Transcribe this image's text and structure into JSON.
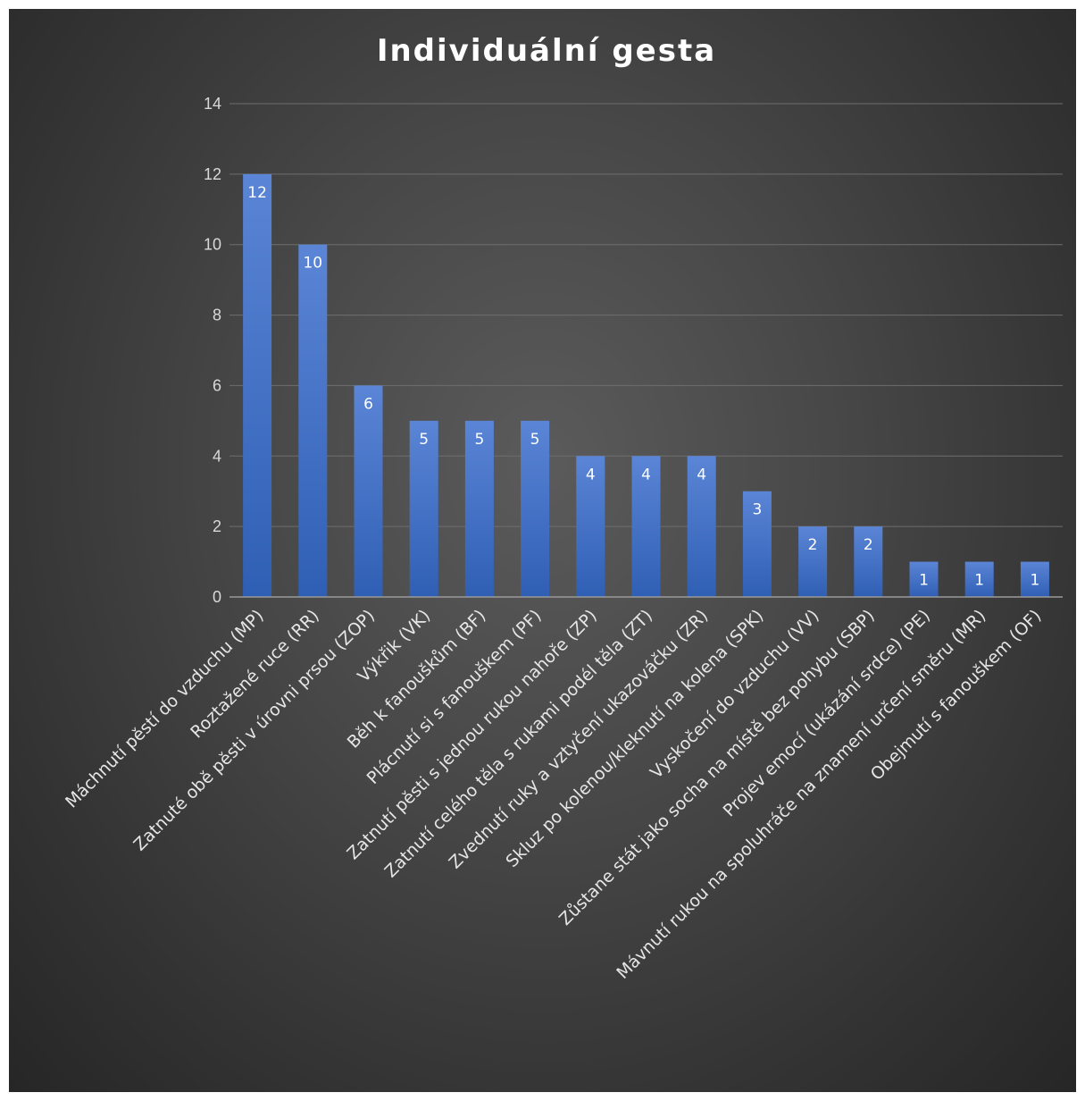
{
  "chart_data": {
    "type": "bar",
    "title": "Individuální gesta",
    "xlabel": "",
    "ylabel": "",
    "ylim": [
      0,
      14
    ],
    "yticks": [
      0,
      2,
      4,
      6,
      8,
      10,
      12,
      14
    ],
    "grid": true,
    "legend": "none",
    "bar_color": "#4472c4",
    "categories": [
      "Máchnutí pěstí do vzduchu (MP)",
      "Roztažené ruce (RR)",
      "Zatnuté obě pěsti v úrovni prsou (ZOP)",
      "Výkřik (VK)",
      "Běh k fanouškům (BF)",
      "Plácnutí si s fanouškem (PF)",
      "Zatnutí pěsti s jednou rukou nahoře (ZP)",
      "Zatnutí celého těla s rukami podél těla (ZT)",
      "Zvednutí ruky a vztyčení ukazováčku (ZR)",
      "Skluz po kolenou/kleknutí na kolena (SPK)",
      "Vyskočení do vzduchu (VV)",
      "Zůstane stát jako socha na místě bez pohybu (SBP)",
      "Projev emocí (ukázání srdce) (PE)",
      "Mávnutí rukou na spoluhráče na znamení určení směru (MR)",
      "Obejmutí s fanouškem (OF)"
    ],
    "values": [
      12,
      10,
      6,
      5,
      5,
      5,
      4,
      4,
      4,
      3,
      2,
      2,
      1,
      1,
      1
    ]
  }
}
